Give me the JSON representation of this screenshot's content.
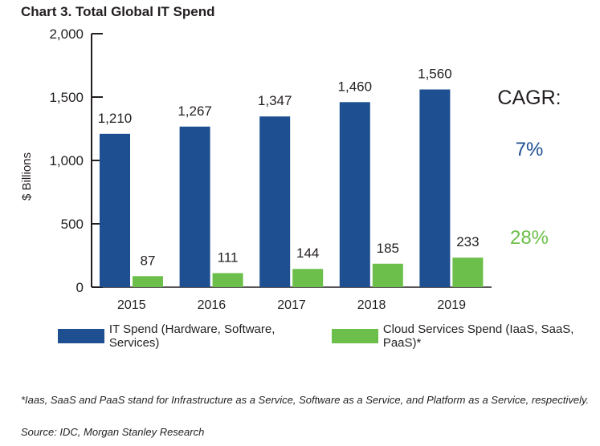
{
  "chart_data": {
    "type": "bar",
    "title": "Chart 3. Total Global IT Spend",
    "xlabel": "",
    "ylabel": "$ Billions",
    "ylim": [
      0,
      2000
    ],
    "yticks": [
      0,
      500,
      1000,
      1500,
      2000
    ],
    "ytick_labels": [
      "0",
      "500",
      "1,000",
      "1,500",
      "2,000"
    ],
    "categories": [
      "2015",
      "2016",
      "2017",
      "2018",
      "2019"
    ],
    "series": [
      {
        "name": "IT Spend (Hardware, Software, Services)",
        "color": "#1d4f91",
        "values": [
          1210,
          1267,
          1347,
          1460,
          1560
        ],
        "labels": [
          "1,210",
          "1,267",
          "1,347",
          "1,460",
          "1,560"
        ]
      },
      {
        "name": "Cloud Services Spend (IaaS, SaaS, PaaS)*",
        "color": "#6cbf4a",
        "values": [
          87,
          111,
          144,
          185,
          233
        ],
        "labels": [
          "87",
          "111",
          "144",
          "185",
          "233"
        ]
      }
    ],
    "annotations": {
      "cagr_title": "CAGR:",
      "cagr_it": "7%",
      "cagr_cloud": "28%"
    }
  },
  "legend": {
    "it_label": "IT Spend (Hardware, Software, Services)",
    "cloud_label": "Cloud Services Spend (IaaS, SaaS, PaaS)*"
  },
  "footnote": "*Iaas, SaaS and PaaS stand for Infrastructure as a Service, Software as a Service, and Platform as a Service, respectively.",
  "source": "Source: IDC, Morgan Stanley Research"
}
